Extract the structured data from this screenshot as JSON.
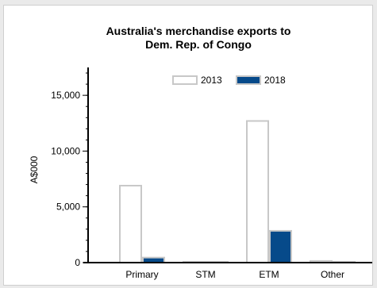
{
  "chart_data": {
    "type": "bar",
    "title": "Australia's merchandise exports to Dem. Rep. of Congo",
    "title_lines": [
      "Australia's merchandise exports to",
      "Dem. Rep. of Congo"
    ],
    "xlabel": "",
    "ylabel": "A$000",
    "categories": [
      "Primary",
      "STM",
      "ETM",
      "Other"
    ],
    "series": [
      {
        "name": "2013",
        "values": [
          6900,
          60,
          12700,
          150
        ],
        "fill": "#ffffff",
        "stroke": "#c8c8c8"
      },
      {
        "name": "2018",
        "values": [
          450,
          30,
          2850,
          20
        ],
        "fill": "#064a8a",
        "stroke": "#c8c8c8"
      }
    ],
    "ylim": [
      0,
      17500
    ],
    "yticks": [
      0,
      5000,
      10000,
      15000
    ],
    "ytick_labels": [
      "0",
      "5,000",
      "10,000",
      "15,000"
    ],
    "minor_tick_step": 1000,
    "grid": false,
    "legend_position": "top-center"
  }
}
